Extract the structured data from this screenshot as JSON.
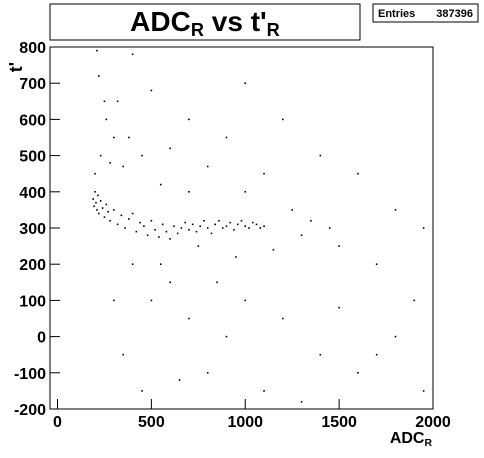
{
  "chart_data": {
    "type": "scatter",
    "title": {
      "parts": [
        "ADC",
        "R",
        " vs t'",
        "R"
      ]
    },
    "stats": {
      "label": "Entries",
      "value": "387396"
    },
    "x_label": {
      "parts": [
        "ADC",
        "R"
      ]
    },
    "y_label": "t'",
    "xlim": [
      -40,
      2000
    ],
    "ylim": [
      -200,
      800
    ],
    "xticks": [
      0,
      500,
      1000,
      1500,
      2000
    ],
    "yticks": [
      -200,
      -100,
      0,
      100,
      200,
      300,
      400,
      500,
      600,
      700,
      800
    ],
    "color": "#000000",
    "series": [
      {
        "x": [
          190,
          195,
          200,
          205,
          210,
          215,
          220,
          230,
          240,
          250,
          260,
          270,
          280,
          300,
          320,
          340,
          360,
          380,
          400,
          420,
          440,
          460,
          480,
          500,
          520,
          540,
          560,
          580,
          600,
          620,
          640,
          660,
          680,
          700,
          720,
          740,
          760,
          780,
          800,
          820,
          840,
          860,
          880,
          900,
          920,
          940,
          960,
          980,
          1000,
          1020,
          1040,
          1060,
          1080,
          1100,
          250,
          220,
          300,
          230,
          350,
          400,
          260,
          500,
          600,
          700,
          800,
          900,
          1000,
          1200,
          1400,
          1600,
          1800,
          1950,
          1300,
          1500,
          1700,
          1900,
          1800,
          1600,
          1400,
          1200,
          1000,
          900,
          800,
          700,
          600,
          500,
          400,
          350,
          300,
          450,
          650,
          850,
          1100,
          1300,
          1500,
          1700,
          1950,
          550,
          750,
          950,
          1150,
          1250,
          1350,
          1450,
          1000,
          1100,
          700,
          550,
          450,
          200,
          210,
          280,
          320,
          380
        ],
        "y": [
          380,
          360,
          400,
          370,
          350,
          390,
          340,
          375,
          355,
          330,
          365,
          345,
          320,
          350,
          310,
          335,
          300,
          325,
          340,
          290,
          315,
          305,
          280,
          320,
          295,
          275,
          310,
          290,
          270,
          305,
          285,
          300,
          315,
          295,
          310,
          290,
          305,
          320,
          300,
          285,
          310,
          320,
          300,
          305,
          315,
          295,
          310,
          320,
          305,
          300,
          315,
          310,
          300,
          305,
          650,
          720,
          550,
          500,
          470,
          780,
          600,
          680,
          520,
          600,
          470,
          550,
          700,
          600,
          500,
          450,
          350,
          300,
          280,
          250,
          200,
          100,
          0,
          -100,
          -50,
          50,
          100,
          0,
          -100,
          50,
          150,
          100,
          200,
          -50,
          100,
          -150,
          -120,
          150,
          -150,
          -180,
          80,
          -50,
          -150,
          200,
          250,
          220,
          240,
          350,
          320,
          300,
          400,
          450,
          400,
          420,
          500,
          450,
          790,
          480,
          650,
          550
        ]
      }
    ]
  }
}
